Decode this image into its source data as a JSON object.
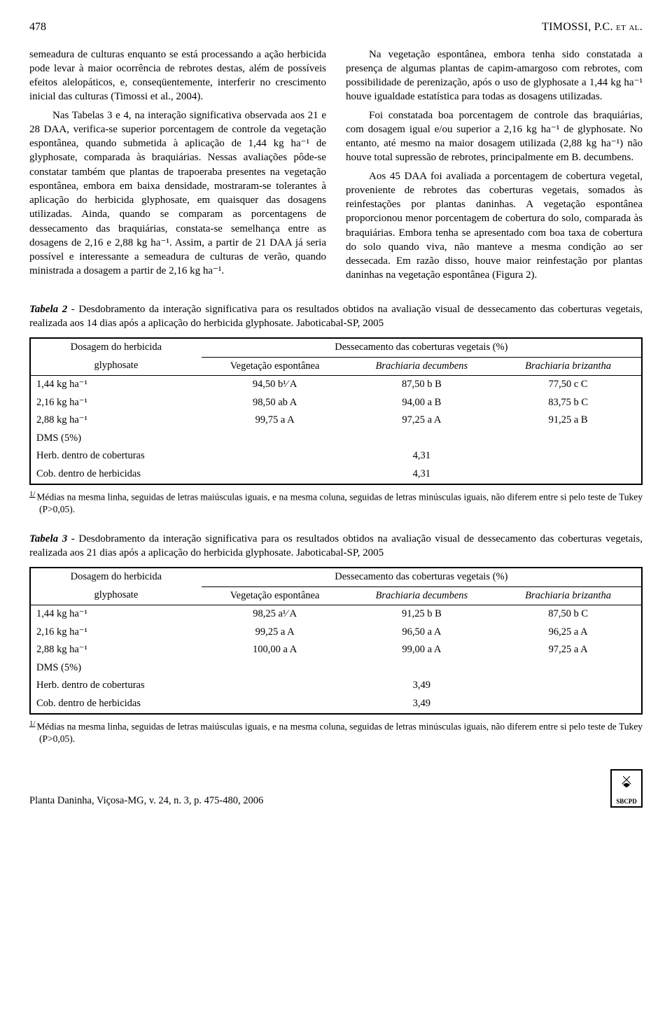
{
  "header": {
    "page_number": "478",
    "author": "TIMOSSI, P.C. et al."
  },
  "body": {
    "left": [
      "semeadura de culturas enquanto se está processando a ação herbicida pode levar à maior ocorrência de rebrotes destas, além de possíveis efeitos alelopáticos, e, conseqüentemente, interferir no crescimento inicial das culturas (Timossi et al., 2004).",
      "Nas Tabelas 3 e 4, na interação significativa observada aos 21 e 28 DAA, verifica-se superior porcentagem de controle da vegetação espontânea, quando submetida à aplicação de 1,44 kg ha⁻¹ de glyphosate, comparada às braquiárias. Nessas avaliações pôde-se constatar também que plantas de trapoeraba presentes na vegetação espontânea, embora em baixa densidade, mostraram-se tolerantes à aplicação do herbicida glyphosate, em quaisquer das dosagens utilizadas. Ainda, quando se comparam as porcentagens de dessecamento das braquiárias, constata-se semelhança entre as dosagens de 2,16 e 2,88 kg ha⁻¹. Assim, a partir de 21 DAA já seria possível e interessante a semeadura de culturas de verão, quando ministrada a dosagem a partir de 2,16 kg ha⁻¹."
    ],
    "right": [
      "Na vegetação espontânea, embora tenha sido constatada a presença de algumas plantas de capim-amargoso com rebrotes, com possibilidade de perenização, após o uso de glyphosate a 1,44 kg ha⁻¹ houve igualdade estatística para todas as dosagens utilizadas.",
      "Foi constatada boa porcentagem de controle das braquiárias, com dosagem igual e/ou superior a 2,16 kg ha⁻¹ de glyphosate. No entanto, até mesmo na maior dosagem utilizada (2,88 kg ha⁻¹) não houve total supressão de rebrotes, principalmente em B. decumbens.",
      "Aos 45 DAA foi avaliada a porcentagem de cobertura vegetal, proveniente de rebrotes das coberturas vegetais, somados às reinfestações por plantas daninhas. A vegetação espontânea proporcionou menor porcentagem de cobertura do solo, comparada às braquiárias. Embora tenha se apresentado com boa taxa de cobertura do solo quando viva, não manteve a mesma condição ao ser dessecada. Em razão disso, houve maior reinfestação por plantas daninhas na vegetação espontânea (Figura 2)."
    ]
  },
  "tables": {
    "t2": {
      "label": "Tabela 2",
      "caption": " - Desdobramento da interação significativa para os resultados obtidos na avaliação visual de dessecamento das coberturas vegetais, realizada aos 14 dias após a aplicação do herbicida glyphosate. Jaboticabal-SP, 2005",
      "head": {
        "c0a": "Dosagem do herbicida",
        "c0b": "glyphosate",
        "span": "Dessecamento das coberturas vegetais (%)",
        "c1": "Vegetação espontânea",
        "c2": "Brachiaria decumbens",
        "c3": "Brachiaria brizantha"
      },
      "rows": [
        {
          "d": "1,44 kg ha⁻¹",
          "v1": "94,50 b¹⁄ A",
          "v2": "87,50 b B",
          "v3": "77,50 c C"
        },
        {
          "d": "2,16 kg ha⁻¹",
          "v1": "98,50 ab A",
          "v2": "94,00 a B",
          "v3": "83,75 b C"
        },
        {
          "d": "2,88 kg ha⁻¹",
          "v1": "99,75 a  A",
          "v2": "97,25 a A",
          "v3": "91,25 a B"
        }
      ],
      "dms_label": "DMS (5%)",
      "dms_rows": [
        {
          "l": "Herb. dentro de coberturas",
          "v": "4,31"
        },
        {
          "l": "Cob. dentro de herbicidas",
          "v": "4,31"
        }
      ],
      "footnote": "Médias na mesma linha, seguidas de letras maiúsculas iguais, e na mesma coluna, seguidas de letras minúsculas iguais, não diferem entre si pelo teste de Tukey (P>0,05)."
    },
    "t3": {
      "label": "Tabela 3",
      "caption": " - Desdobramento da interação significativa para os resultados obtidos na avaliação visual de dessecamento das coberturas vegetais, realizada aos 21 dias após a aplicação do herbicida glyphosate. Jaboticabal-SP, 2005",
      "head": {
        "c0a": "Dosagem do herbicida",
        "c0b": "glyphosate",
        "span": "Dessecamento das coberturas vegetais (%)",
        "c1": "Vegetação espontânea",
        "c2": "Brachiaria decumbens",
        "c3": "Brachiaria brizantha"
      },
      "rows": [
        {
          "d": "1,44 kg ha⁻¹",
          "v1": "98,25 a¹⁄ A",
          "v2": "91,25 b B",
          "v3": "87,50 b C"
        },
        {
          "d": "2,16 kg ha⁻¹",
          "v1": "99,25 a  A",
          "v2": "96,50 a A",
          "v3": "96,25 a A"
        },
        {
          "d": "2,88 kg ha⁻¹",
          "v1": "100,00 a  A",
          "v2": "99,00 a A",
          "v3": "97,25 a A"
        }
      ],
      "dms_label": "DMS (5%)",
      "dms_rows": [
        {
          "l": "Herb. dentro de coberturas",
          "v": "3,49"
        },
        {
          "l": "Cob. dentro de herbicidas",
          "v": "3,49"
        }
      ],
      "footnote": "Médias na mesma linha, seguidas de letras maiúsculas iguais, e na mesma coluna, seguidas de letras minúsculas iguais, não diferem entre si pelo teste de Tukey (P>0,05)."
    }
  },
  "footer": {
    "journal": "Planta Daninha, Viçosa-MG, v. 24, n. 3, p. 475-480, 2006",
    "logo_text": "SBCPD"
  }
}
